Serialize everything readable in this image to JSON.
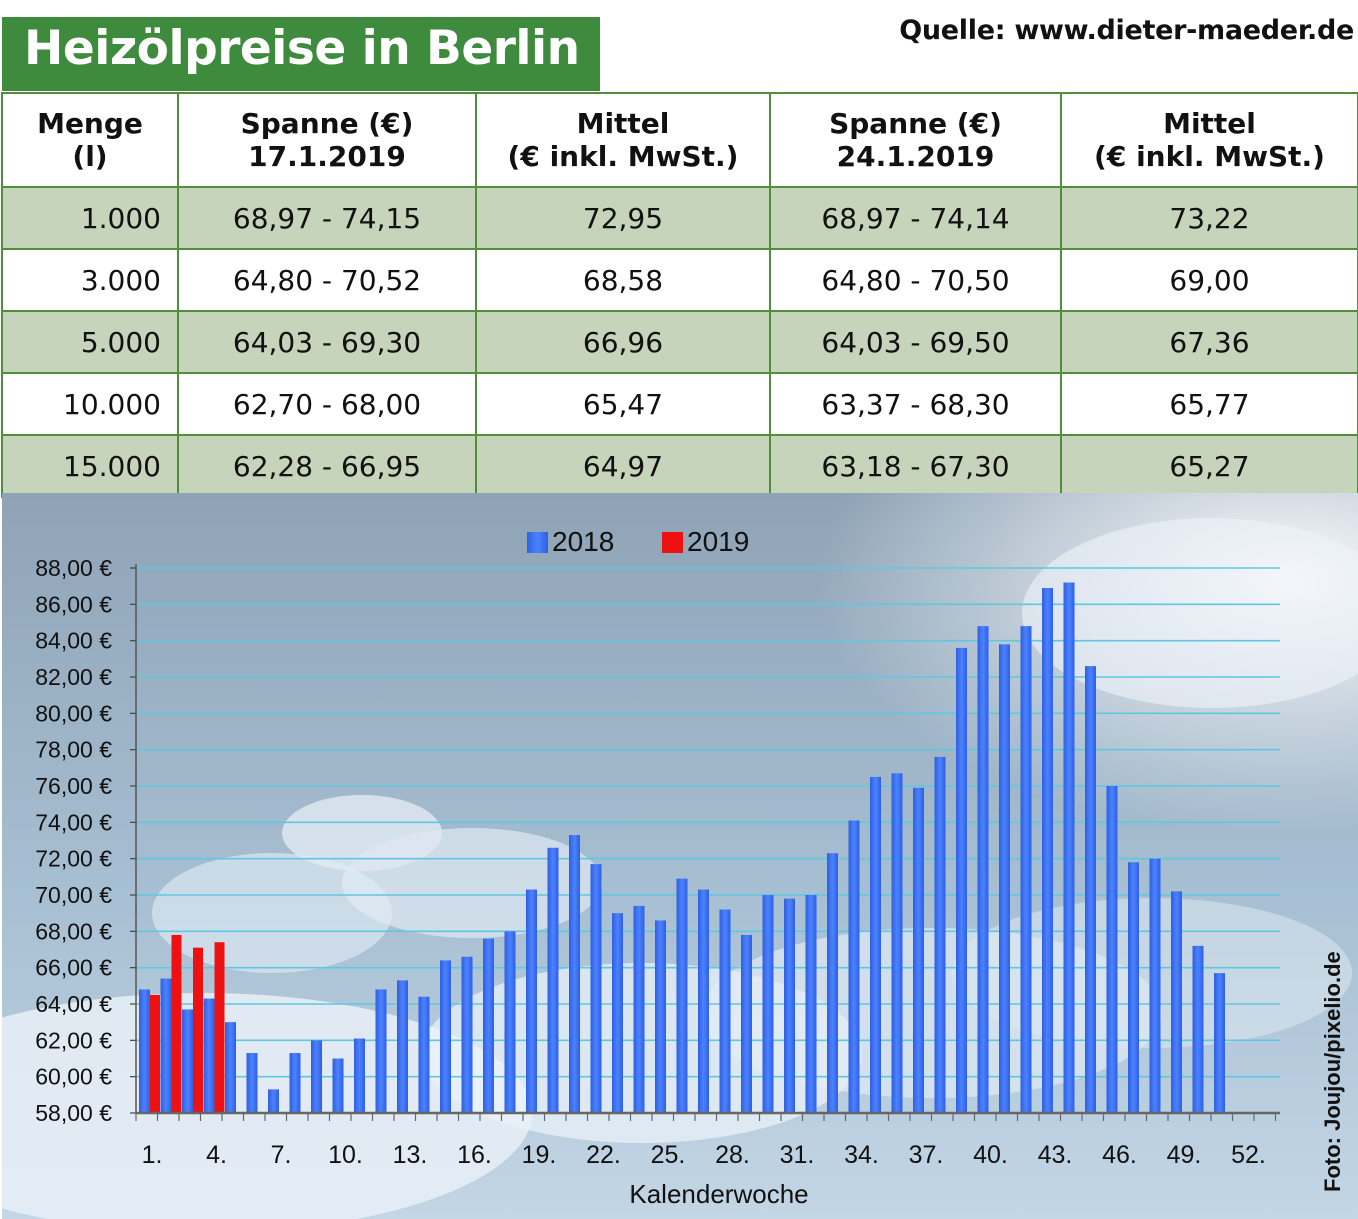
{
  "title": "Heizölpreise in Berlin",
  "source": "Quelle: www.dieter-maeder.de",
  "photo_credit": "Foto: Joujou/pixelio.de",
  "colors": {
    "title_bg": "#3e8b3d",
    "row_shade": "#c6d4bb",
    "border": "#4f8e3b",
    "series_2018": "#3a6ff0",
    "series_2019": "#ee1111"
  },
  "table": {
    "headers": [
      {
        "line1": "Menge",
        "line2": "(l)"
      },
      {
        "line1": "Spanne (€)",
        "line2": "17.1.2019"
      },
      {
        "line1": "Mittel",
        "line2": "(€ inkl. MwSt.)"
      },
      {
        "line1": "Spanne (€)",
        "line2": "24.1.2019"
      },
      {
        "line1": "Mittel",
        "line2": "(€ inkl. MwSt.)"
      }
    ],
    "rows": [
      [
        "1.000",
        "68,97 - 74,15",
        "72,95",
        "68,97 - 74,14",
        "73,22"
      ],
      [
        "3.000",
        "64,80 - 70,52",
        "68,58",
        "64,80 - 70,50",
        "69,00"
      ],
      [
        "5.000",
        "64,03 - 69,30",
        "66,96",
        "64,03 - 69,50",
        "67,36"
      ],
      [
        "10.000",
        "62,70 - 68,00",
        "65,47",
        "63,37 - 68,30",
        "65,77"
      ],
      [
        "15.000",
        "62,28 - 66,95",
        "64,97",
        "63,18 - 67,30",
        "65,27"
      ]
    ]
  },
  "chart_data": {
    "type": "bar",
    "xlabel": "Kalenderwoche",
    "ylabel": "",
    "ylim": [
      58,
      88
    ],
    "y_ticks": [
      "58,00 €",
      "60,00 €",
      "62,00 €",
      "64,00 €",
      "66,00 €",
      "68,00 €",
      "70,00 €",
      "72,00 €",
      "74,00 €",
      "76,00 €",
      "78,00 €",
      "80,00 €",
      "82,00 €",
      "84,00 €",
      "86,00 €",
      "88,00 €"
    ],
    "x_tick_labels": [
      "1.",
      "4.",
      "7.",
      "10.",
      "13.",
      "16.",
      "19.",
      "22.",
      "25.",
      "28.",
      "31.",
      "34.",
      "37.",
      "40.",
      "43.",
      "46.",
      "49.",
      "52."
    ],
    "legend_position": "top-center",
    "grid": true,
    "series": [
      {
        "name": "2018",
        "weeks": [
          1,
          2,
          3,
          4,
          5,
          6,
          7,
          8,
          9,
          10,
          11,
          12,
          13,
          14,
          15,
          16,
          17,
          18,
          19,
          20,
          21,
          22,
          23,
          24,
          25,
          26,
          27,
          28,
          29,
          30,
          31,
          32,
          33,
          34,
          35,
          36,
          37,
          38,
          39,
          40,
          41,
          42,
          43,
          44,
          45,
          46,
          47,
          48,
          49,
          50,
          51
        ],
        "values": [
          64.8,
          65.4,
          63.7,
          64.3,
          63.0,
          61.3,
          59.3,
          61.3,
          62.0,
          61.0,
          62.1,
          64.8,
          65.3,
          64.4,
          66.4,
          66.6,
          67.6,
          68.0,
          70.3,
          72.6,
          73.3,
          71.7,
          69.0,
          69.4,
          68.6,
          70.9,
          70.3,
          69.2,
          67.8,
          70.0,
          69.8,
          70.0,
          72.3,
          74.1,
          76.5,
          76.7,
          75.9,
          77.6,
          83.6,
          84.8,
          83.8,
          84.8,
          86.9,
          87.2,
          82.6,
          76.0,
          71.8,
          72.0,
          70.2,
          67.2,
          65.7
        ]
      },
      {
        "name": "2019",
        "weeks": [
          1,
          2,
          3,
          4
        ],
        "values": [
          64.5,
          67.8,
          67.1,
          67.4
        ]
      }
    ]
  }
}
